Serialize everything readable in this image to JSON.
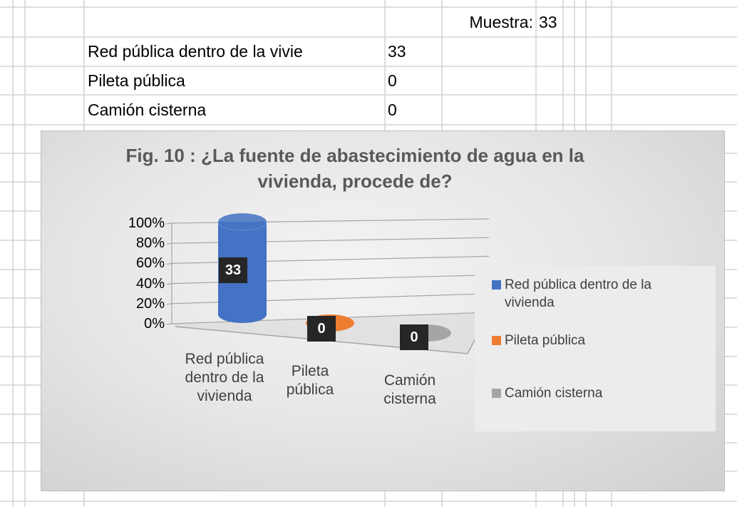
{
  "sheet": {
    "muestra_label": "Muestra:",
    "muestra_value": 33,
    "rows": [
      [
        "Red pública dentro de la vivie",
        33
      ],
      [
        "Pileta pública",
        0
      ],
      [
        "Camión cisterna",
        0
      ]
    ]
  },
  "chart_data": {
    "type": "bar3d",
    "title": "Fig. 10 : ¿La fuente de abastecimiento de agua en la vivienda, procede de?",
    "categories": [
      "Red pública dentro de la vivienda",
      "Pileta pública",
      "Camión cisterna"
    ],
    "values": [
      100,
      0,
      0
    ],
    "data_labels": [
      33,
      0,
      0
    ],
    "colors": [
      "#4472c4",
      "#ed7d31",
      "#a5a5a5"
    ],
    "ylim": [
      0,
      100
    ],
    "yticks": [
      {
        "value": 0,
        "label": "0%"
      },
      {
        "value": 20,
        "label": "20%"
      },
      {
        "value": 40,
        "label": "40%"
      },
      {
        "value": 60,
        "label": "60%"
      },
      {
        "value": 80,
        "label": "80%"
      },
      {
        "value": 100,
        "label": "100%"
      }
    ],
    "grid": true,
    "legend": "right"
  }
}
